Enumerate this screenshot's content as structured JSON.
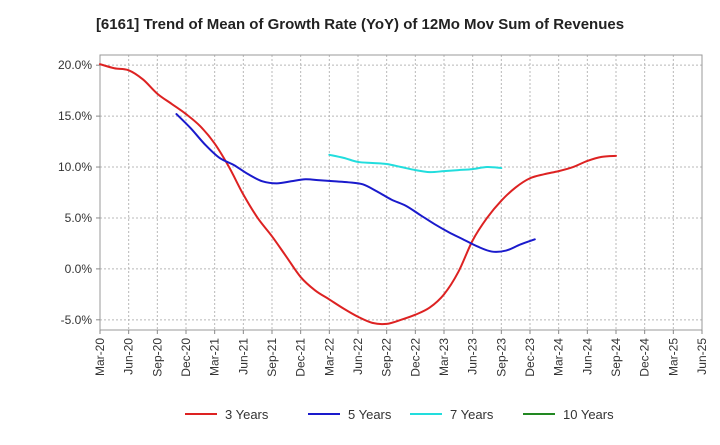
{
  "chart_data": {
    "type": "line",
    "title": "[6161]  Trend of Mean of Growth Rate (YoY) of 12Mo Mov Sum of Revenues",
    "xlabel": "",
    "ylabel": "",
    "ylim": [
      -6.0,
      21.0
    ],
    "y_ticks": [
      20.0,
      15.0,
      10.0,
      5.0,
      0.0,
      -5.0
    ],
    "y_tick_labels": [
      "20.0%",
      "15.0%",
      "10.0%",
      "5.0%",
      "0.0%",
      "-5.0%"
    ],
    "x_tick_labels": [
      "Mar-20",
      "Jun-20",
      "Sep-20",
      "Dec-20",
      "Mar-21",
      "Jun-21",
      "Sep-21",
      "Dec-21",
      "Mar-22",
      "Jun-22",
      "Sep-22",
      "Dec-22",
      "Mar-23",
      "Jun-23",
      "Sep-23",
      "Dec-23",
      "Mar-24",
      "Jun-24",
      "Sep-24",
      "Dec-24",
      "Mar-25",
      "Jun-25"
    ],
    "grid": true,
    "legend_position": "bottom",
    "series": [
      {
        "name": "3 Years",
        "color": "#dd2222",
        "start_index": 0,
        "values": [
          20.1,
          19.7,
          19.5,
          18.6,
          17.2,
          16.2,
          15.2,
          14.0,
          12.3,
          10.0,
          7.3,
          5.0,
          3.2,
          1.2,
          -0.8,
          -2.1,
          -3.0,
          -3.9,
          -4.7,
          -5.3,
          -5.4,
          -5.0,
          -4.5,
          -3.8,
          -2.5,
          -0.3,
          2.8,
          5.0,
          6.7,
          8.0,
          8.9,
          9.3,
          9.6,
          10.0,
          10.6,
          11.0,
          11.1
        ]
      },
      {
        "name": "5 Years",
        "color": "#1a1acc",
        "start_index": 8,
        "values": [
          15.2,
          13.8,
          12.2,
          10.9,
          10.2,
          9.3,
          8.6,
          8.4,
          8.6,
          8.8,
          8.7,
          8.6,
          8.5,
          8.3,
          7.6,
          6.8,
          6.2,
          5.3,
          4.4,
          3.6,
          2.9,
          2.2,
          1.7,
          1.8,
          2.4,
          2.9
        ]
      },
      {
        "name": "7 Years",
        "color": "#22dddd",
        "start_index": 24,
        "values": [
          11.2,
          10.9,
          10.5,
          10.4,
          10.3,
          10.0,
          9.7,
          9.5,
          9.6,
          9.7,
          9.8,
          10.0,
          9.9
        ]
      },
      {
        "name": "10 Years",
        "color": "#228822",
        "start_index": 0,
        "values": []
      }
    ]
  }
}
